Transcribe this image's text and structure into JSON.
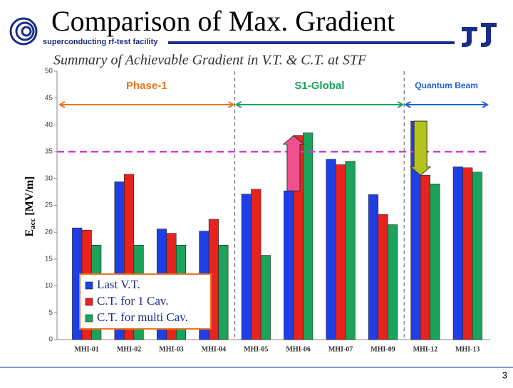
{
  "header": {
    "title": "Comparison of Max. Gradient",
    "subtitle": "superconducting rf-test facility"
  },
  "page_number": "3",
  "chart_data": {
    "type": "bar",
    "title": "Summary of Achievable Gradient in V.T. & C.T. at STF",
    "ylabel_main": "E",
    "ylabel_sub": "acc",
    "ylabel_unit": "[MV/m]",
    "categories": [
      "MHI-01",
      "MHI-02",
      "MHI-03",
      "MHI-04",
      "MHI-05",
      "MHI-06",
      "MHI-07",
      "MHI-09",
      "MHI-12",
      "MHI-13"
    ],
    "series": [
      {
        "name": "Last V.T.",
        "color": "#1f3fe6",
        "values": [
          20.8,
          29.4,
          20.6,
          20.2,
          27.1,
          27.7,
          33.6,
          27.0,
          40.7,
          32.2
        ]
      },
      {
        "name": "C.T. for 1 Cav.",
        "color": "#e8231d",
        "values": [
          20.4,
          30.8,
          19.8,
          22.4,
          28.0,
          38.0,
          32.6,
          23.3,
          30.6,
          32.0
        ]
      },
      {
        "name": "C.T. for multi Cav.",
        "color": "#1aa35a",
        "values": [
          17.6,
          17.6,
          17.6,
          17.6,
          15.7,
          38.5,
          33.2,
          21.4,
          29.0,
          31.2
        ]
      }
    ],
    "phases": [
      {
        "label": "Phase-1",
        "color": "#e87722"
      },
      {
        "label": "S1-Global",
        "color": "#1aa35a"
      },
      {
        "label": "Quantum Beam",
        "color": "#1f5fd6"
      }
    ],
    "reference_line": {
      "value": 35,
      "color": "#d63bd6"
    },
    "ylim": [
      0,
      50
    ],
    "yticks": [
      0,
      5,
      10,
      15,
      20,
      25,
      30,
      35,
      40,
      45,
      50
    ],
    "grid": false
  }
}
